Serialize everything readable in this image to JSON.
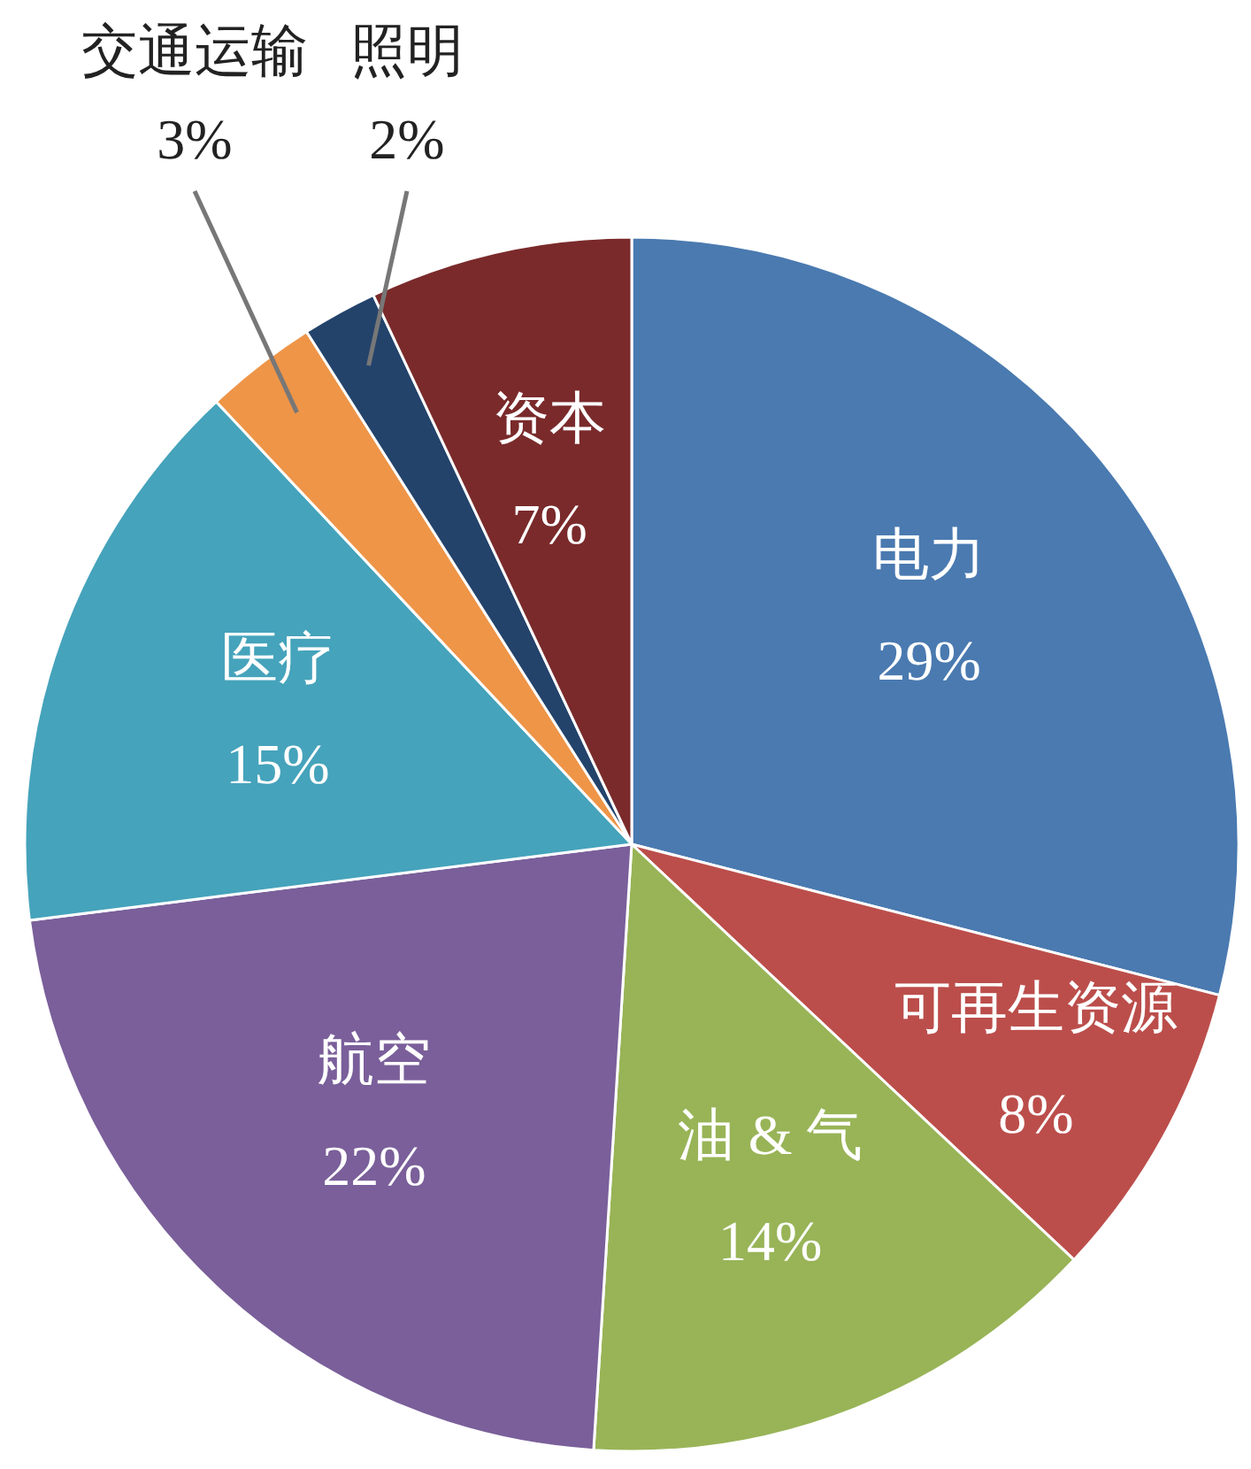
{
  "chart_data": {
    "type": "pie",
    "categories": [
      "电力",
      "可再生资源",
      "油 & 气",
      "航空",
      "医疗",
      "交通运输",
      "照明",
      "资本"
    ],
    "values": [
      29,
      8,
      14,
      22,
      15,
      3,
      2,
      7
    ],
    "colors": [
      "#4a7ab0",
      "#bb4e4b",
      "#98b457",
      "#7a5f9a",
      "#45a3bb",
      "#ee9548",
      "#23436b",
      "#7a2a2b"
    ],
    "value_labels": [
      "29%",
      "8%",
      "14%",
      "22%",
      "15%",
      "3%",
      "2%",
      "7%"
    ]
  }
}
